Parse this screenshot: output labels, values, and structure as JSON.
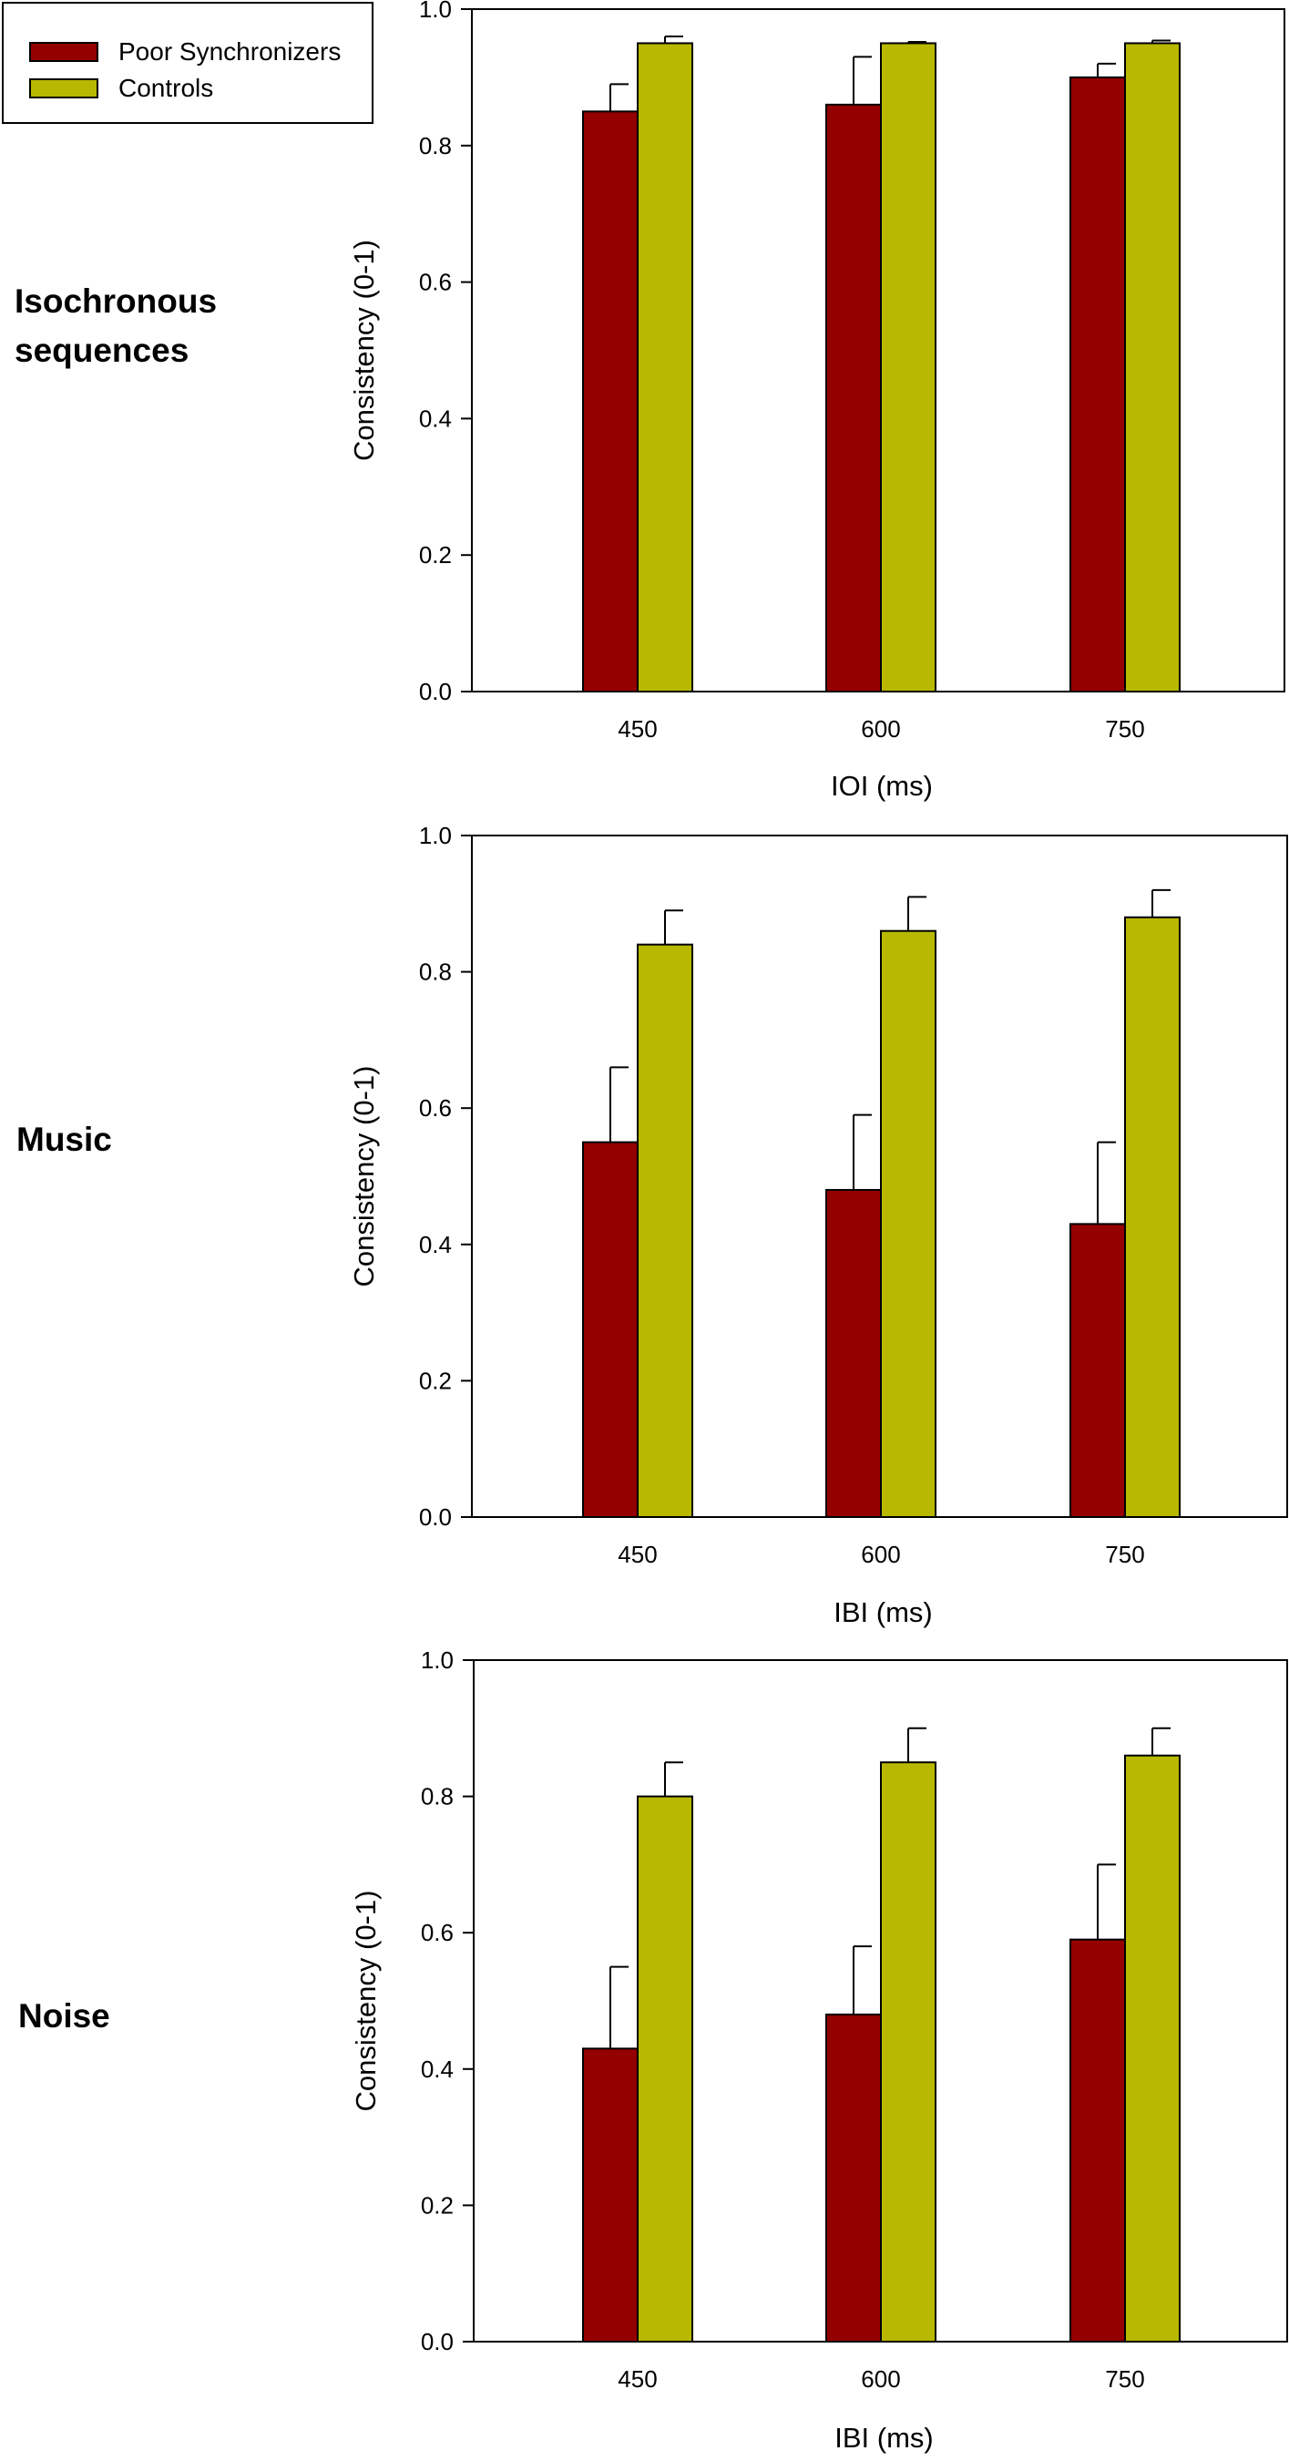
{
  "legend": {
    "items": [
      {
        "label": "Poor Synchronizers",
        "color": "#940000"
      },
      {
        "label": "Controls",
        "color": "#b8b800"
      }
    ]
  },
  "chart_data": [
    {
      "type": "bar",
      "panel_label": [
        "Isochronous",
        "sequences"
      ],
      "categories": [
        "450",
        "600",
        "750"
      ],
      "series": [
        {
          "name": "Poor Synchronizers",
          "values": [
            0.85,
            0.86,
            0.9
          ],
          "errors": [
            0.04,
            0.07,
            0.02
          ]
        },
        {
          "name": "Controls",
          "values": [
            0.95,
            0.95,
            0.95
          ],
          "errors": [
            0.01,
            0.002,
            0.004
          ]
        }
      ],
      "xlabel": "IOI (ms)",
      "ylabel": "Consistency (0-1)",
      "ylim": [
        0.0,
        1.0
      ],
      "yticks": [
        "0.0",
        "0.2",
        "0.4",
        "0.6",
        "0.8",
        "1.0"
      ]
    },
    {
      "type": "bar",
      "panel_label": [
        "Music"
      ],
      "categories": [
        "450",
        "600",
        "750"
      ],
      "series": [
        {
          "name": "Poor Synchronizers",
          "values": [
            0.55,
            0.48,
            0.43
          ],
          "errors": [
            0.11,
            0.11,
            0.12
          ]
        },
        {
          "name": "Controls",
          "values": [
            0.84,
            0.86,
            0.88
          ],
          "errors": [
            0.05,
            0.05,
            0.04
          ]
        }
      ],
      "xlabel": "IBI (ms)",
      "ylabel": "Consistency (0-1)",
      "ylim": [
        0.0,
        1.0
      ],
      "yticks": [
        "0.0",
        "0.2",
        "0.4",
        "0.6",
        "0.8",
        "1.0"
      ]
    },
    {
      "type": "bar",
      "panel_label": [
        "Noise"
      ],
      "categories": [
        "450",
        "600",
        "750"
      ],
      "series": [
        {
          "name": "Poor Synchronizers",
          "values": [
            0.43,
            0.48,
            0.59
          ],
          "errors": [
            0.12,
            0.1,
            0.11
          ]
        },
        {
          "name": "Controls",
          "values": [
            0.8,
            0.85,
            0.86
          ],
          "errors": [
            0.05,
            0.05,
            0.04
          ]
        }
      ],
      "xlabel": "IBI (ms)",
      "ylabel": "Consistency (0-1)",
      "ylim": [
        0.0,
        1.0
      ],
      "yticks": [
        "0.0",
        "0.2",
        "0.4",
        "0.6",
        "0.8",
        "1.0"
      ]
    }
  ]
}
